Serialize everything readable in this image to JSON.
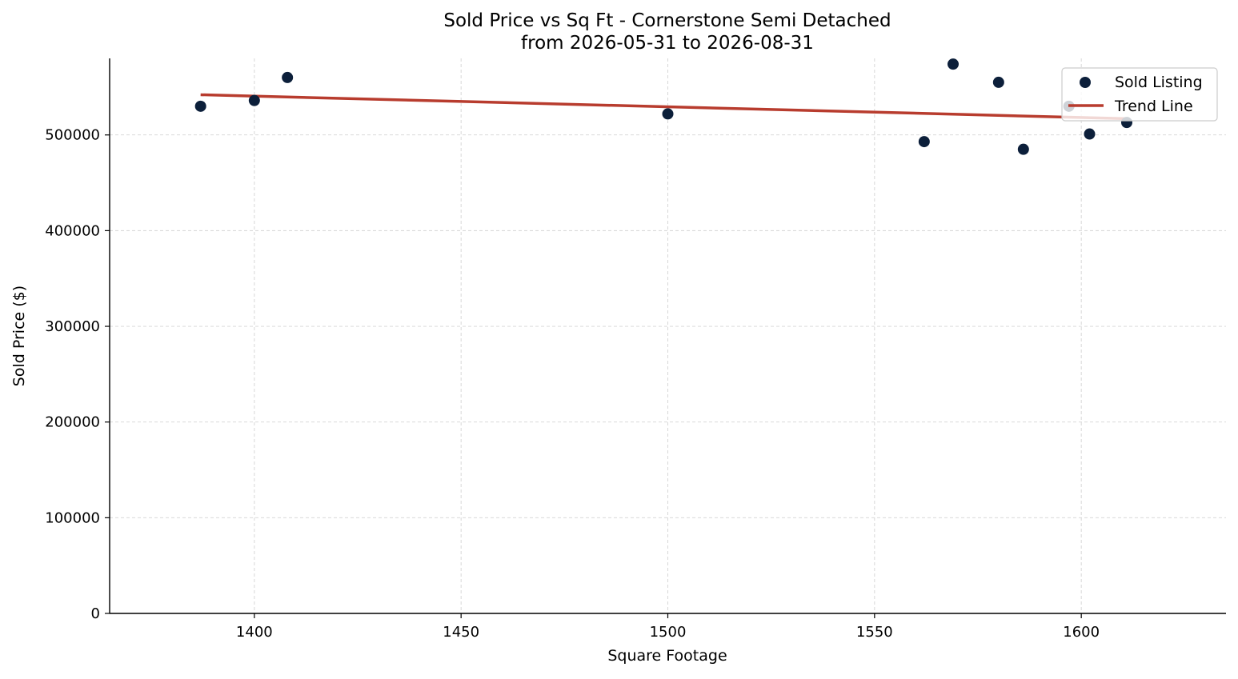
{
  "chart_data": {
    "type": "scatter",
    "title": "Sold Price vs Sq Ft - Cornerstone Semi Detached",
    "subtitle": "from 2026-05-31 to 2026-08-31",
    "xlabel": "Square Footage",
    "ylabel": "Sold Price ($)",
    "xlim": [
      1365,
      1635
    ],
    "ylim": [
      0,
      580000
    ],
    "xticks": [
      1400,
      1450,
      1500,
      1550,
      1600
    ],
    "yticks": [
      0,
      100000,
      200000,
      300000,
      400000,
      500000
    ],
    "grid": true,
    "legend_position": "top-right",
    "series": [
      {
        "name": "Sold Listing",
        "kind": "scatter",
        "color": "#0c1f3a",
        "points": [
          {
            "x": 1387,
            "y": 530000
          },
          {
            "x": 1400,
            "y": 536000
          },
          {
            "x": 1408,
            "y": 560000
          },
          {
            "x": 1500,
            "y": 522000
          },
          {
            "x": 1562,
            "y": 493000
          },
          {
            "x": 1569,
            "y": 574000
          },
          {
            "x": 1580,
            "y": 555000
          },
          {
            "x": 1586,
            "y": 485000
          },
          {
            "x": 1597,
            "y": 530000
          },
          {
            "x": 1602,
            "y": 501000
          },
          {
            "x": 1611,
            "y": 513000
          }
        ]
      },
      {
        "name": "Trend Line",
        "kind": "line",
        "color": "#b83c2e",
        "points": [
          {
            "x": 1387,
            "y": 542000
          },
          {
            "x": 1611,
            "y": 517000
          }
        ]
      }
    ]
  }
}
